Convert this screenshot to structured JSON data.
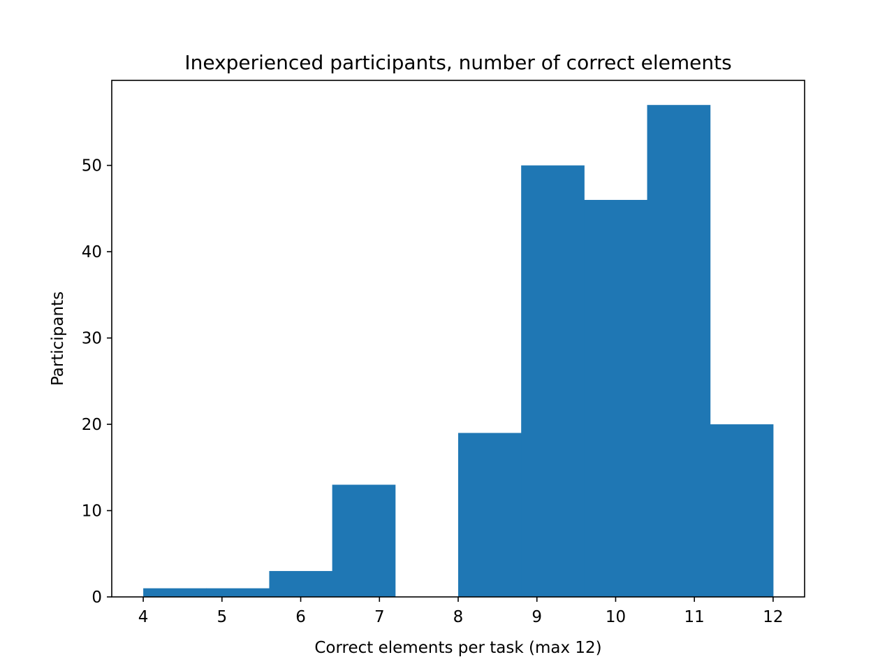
{
  "chart_data": {
    "type": "bar",
    "title": "Inexperienced participants, number of correct elements",
    "xlabel": "Correct elements per task (max 12)",
    "ylabel": "Participants",
    "xlim": [
      3.6,
      12.4
    ],
    "ylim": [
      0,
      59.85
    ],
    "xticks": [
      4,
      5,
      6,
      7,
      8,
      9,
      10,
      11,
      12
    ],
    "yticks": [
      0,
      10,
      20,
      30,
      40,
      50
    ],
    "bins": [
      {
        "x0": 4.0,
        "x1": 4.8,
        "value": 1
      },
      {
        "x0": 4.8,
        "x1": 5.6,
        "value": 1
      },
      {
        "x0": 5.6,
        "x1": 6.4,
        "value": 3
      },
      {
        "x0": 6.4,
        "x1": 7.2,
        "value": 13
      },
      {
        "x0": 7.2,
        "x1": 8.0,
        "value": 0
      },
      {
        "x0": 8.0,
        "x1": 8.8,
        "value": 19
      },
      {
        "x0": 8.8,
        "x1": 9.6,
        "value": 50
      },
      {
        "x0": 9.6,
        "x1": 10.4,
        "value": 46
      },
      {
        "x0": 10.4,
        "x1": 11.2,
        "value": 57
      },
      {
        "x0": 11.2,
        "x1": 12.0,
        "value": 20
      }
    ],
    "bar_color": "#1f77b4",
    "grid": false,
    "legend": "none"
  }
}
